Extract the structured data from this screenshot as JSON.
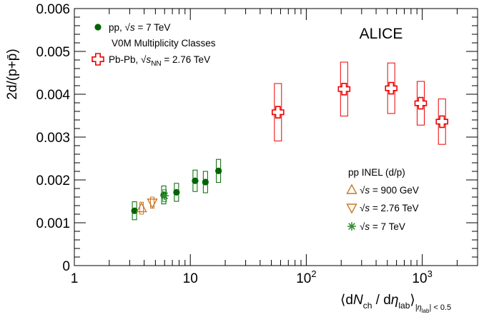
{
  "chart_data": {
    "type": "scatter",
    "title": "",
    "xlabel": "⟨dN_ch / dη_lab⟩_|η_lab| < 0.5",
    "ylabel": "2d/(p+p̄)",
    "xscale": "log",
    "xlim": [
      1,
      3000
    ],
    "ylim": [
      0,
      0.006
    ],
    "x_ticks": [
      {
        "value": 1,
        "label": "1"
      },
      {
        "value": 10,
        "label": "10"
      },
      {
        "value": 100,
        "label": "10",
        "exp": "2"
      },
      {
        "value": 1000,
        "label": "10",
        "exp": "3"
      }
    ],
    "y_ticks": [
      {
        "value": 0,
        "label": "0"
      },
      {
        "value": 0.001,
        "label": "0.001"
      },
      {
        "value": 0.002,
        "label": "0.002"
      },
      {
        "value": 0.003,
        "label": "0.003"
      },
      {
        "value": 0.004,
        "label": "0.004"
      },
      {
        "value": 0.005,
        "label": "0.005"
      },
      {
        "value": 0.006,
        "label": "0.006"
      }
    ],
    "experiment_label": "ALICE",
    "legend_top": {
      "position": "top-left",
      "entries": [
        {
          "text": "pp, √s = 7 TeV",
          "series": "pp_v0m"
        },
        {
          "text": "V0M Multiplicity Classes",
          "series": null
        },
        {
          "text": "Pb-Pb, √s_NN = 2.76 TeV",
          "series": "pbpb"
        }
      ]
    },
    "legend_bottom": {
      "position": "bottom-right",
      "header": "pp INEL (d/p)",
      "entries": [
        {
          "text": "√s = 900 GeV",
          "series": "pp_900"
        },
        {
          "text": "√s = 2.76 TeV",
          "series": "pp_276"
        },
        {
          "text": "√s = 7 TeV",
          "series": "pp_7"
        }
      ]
    },
    "series": [
      {
        "key": "pp_v0m",
        "name": "pp, √s = 7 TeV",
        "marker": "circle",
        "color": "#006400",
        "points": [
          {
            "x": 3.3,
            "y": 0.00128,
            "sys": 0.00021
          },
          {
            "x": 5.9,
            "y": 0.00165,
            "sys": 0.00021
          },
          {
            "x": 7.6,
            "y": 0.00171,
            "sys": 0.00021
          },
          {
            "x": 11.0,
            "y": 0.00198,
            "sys": 0.00025
          },
          {
            "x": 13.5,
            "y": 0.00195,
            "sys": 0.00025
          },
          {
            "x": 17.5,
            "y": 0.00221,
            "sys": 0.00027
          }
        ]
      },
      {
        "key": "pbpb",
        "name": "Pb-Pb, √s_NN = 2.76 TeV",
        "marker": "cross",
        "color": "#ee0000",
        "points": [
          {
            "x": 57,
            "y": 0.00358,
            "sys": 0.00067
          },
          {
            "x": 212,
            "y": 0.00412,
            "sys": 0.00063
          },
          {
            "x": 540,
            "y": 0.00414,
            "sys": 0.00059
          },
          {
            "x": 970,
            "y": 0.00379,
            "sys": 0.00051
          },
          {
            "x": 1480,
            "y": 0.00336,
            "sys": 0.00053
          }
        ]
      },
      {
        "key": "pp_900",
        "name": "√s = 900 GeV",
        "marker": "triangle-up",
        "color": "#cc7722",
        "points": [
          {
            "x": 3.8,
            "y": 0.00134,
            "sys": 0.00014
          }
        ]
      },
      {
        "key": "pp_276",
        "name": "√s = 2.76 TeV",
        "marker": "triangle-down",
        "color": "#cc7722",
        "points": [
          {
            "x": 4.7,
            "y": 0.00147,
            "sys": 0.00013
          }
        ]
      },
      {
        "key": "pp_7",
        "name": "√s = 7 TeV",
        "marker": "star",
        "color": "#2e8b2e",
        "points": [
          {
            "x": 6.0,
            "y": 0.00163,
            "sys": 0.00014
          }
        ]
      }
    ]
  }
}
